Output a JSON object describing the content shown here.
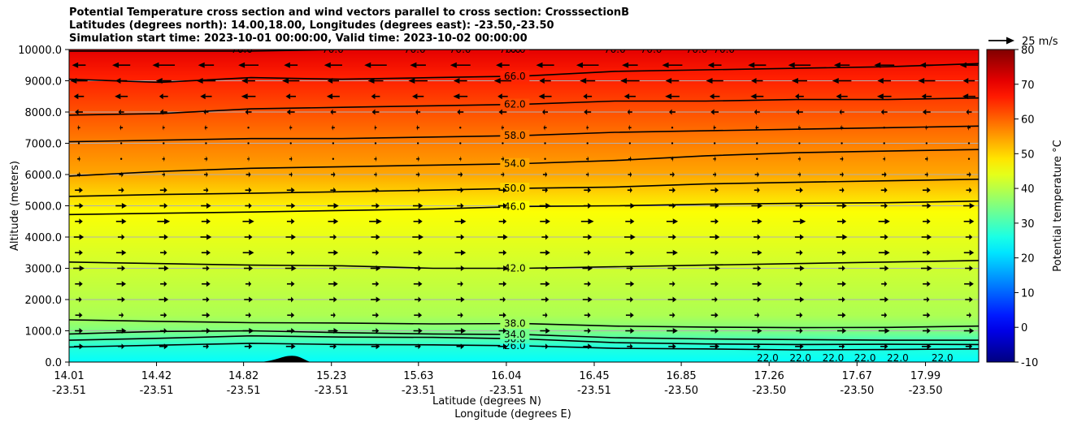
{
  "title_lines": [
    "Potential Temperature cross section and wind vectors parallel to cross section: CrosssectionB",
    "Latitudes (degrees north): 14.00,18.00, Longitudes (degrees east): -23.50,-23.50",
    "Simulation start time: 2023-10-01 00:00:00, Valid time: 2023-10-02 00:00:00"
  ],
  "chart_data": {
    "type": "contour-cross-section",
    "ylabel": "Altitude (meters)",
    "xlabel_lat": "Latitude (degrees N)",
    "xlabel_lon": "Longitude (degrees E)",
    "ylim": [
      0,
      10000
    ],
    "y_ticks": [
      "0.0",
      "1000.0",
      "2000.0",
      "3000.0",
      "4000.0",
      "5000.0",
      "6000.0",
      "7000.0",
      "8000.0",
      "9000.0",
      "10000.0"
    ],
    "y_tick_values": [
      0,
      1000,
      2000,
      3000,
      4000,
      5000,
      6000,
      7000,
      8000,
      9000,
      10000
    ],
    "x_ticks": [
      {
        "lat": "14.01",
        "lon": "-23.51"
      },
      {
        "lat": "14.42",
        "lon": "-23.51"
      },
      {
        "lat": "14.82",
        "lon": "-23.51"
      },
      {
        "lat": "15.23",
        "lon": "-23.51"
      },
      {
        "lat": "15.63",
        "lon": "-23.51"
      },
      {
        "lat": "16.04",
        "lon": "-23.51"
      },
      {
        "lat": "16.45",
        "lon": "-23.51"
      },
      {
        "lat": "16.85",
        "lon": "-23.50"
      },
      {
        "lat": "17.26",
        "lon": "-23.50"
      },
      {
        "lat": "17.67",
        "lon": "-23.50"
      },
      {
        "lat": "17.99",
        "lon": "-23.50"
      }
    ],
    "x_tick_fractions": [
      0,
      0.0961,
      0.1918,
      0.2884,
      0.3841,
      0.4807,
      0.5773,
      0.673,
      0.7696,
      0.8662,
      0.9415
    ],
    "grid": "horizontal",
    "colorbar": {
      "label": "Potential temperature °C",
      "range": [
        -10,
        80
      ],
      "ticks": [
        "-10",
        "0",
        "10",
        "20",
        "30",
        "40",
        "50",
        "60",
        "70",
        "80"
      ],
      "tick_values": [
        -10,
        0,
        10,
        20,
        30,
        40,
        50,
        60,
        70,
        80
      ],
      "colormap": "jet"
    },
    "wind_reference": {
      "label": "25 m/s",
      "speed": 25
    },
    "contours": [
      {
        "level": 26,
        "label": "26.0",
        "altitudes": [
          480,
          540,
          600,
          560,
          550,
          520,
          440,
          420,
          390,
          400,
          420
        ]
      },
      {
        "level": 30,
        "label": "30.0",
        "altitudes": [
          700,
          760,
          840,
          800,
          790,
          740,
          620,
          580,
          560,
          570,
          560
        ]
      },
      {
        "level": 34,
        "label": "34.0",
        "altitudes": [
          900,
          980,
          1000,
          940,
          900,
          880,
          780,
          740,
          720,
          700,
          700
        ]
      },
      {
        "level": 38,
        "label": "38.0",
        "altitudes": [
          1350,
          1300,
          1260,
          1250,
          1220,
          1230,
          1150,
          1120,
          1100,
          1110,
          1150
        ]
      },
      {
        "level": 42,
        "label": "42.0",
        "altitudes": [
          3200,
          3150,
          3100,
          3080,
          3000,
          3000,
          3050,
          3100,
          3150,
          3200,
          3250
        ]
      },
      {
        "level": 46,
        "label": "46.0",
        "altitudes": [
          4720,
          4760,
          4800,
          4850,
          4900,
          4980,
          5000,
          5050,
          5080,
          5100,
          5150
        ]
      },
      {
        "level": 50,
        "label": "50.0",
        "altitudes": [
          5300,
          5360,
          5400,
          5450,
          5500,
          5560,
          5600,
          5700,
          5750,
          5800,
          5850
        ]
      },
      {
        "level": 54,
        "label": "54.0",
        "altitudes": [
          5950,
          6100,
          6200,
          6250,
          6300,
          6350,
          6450,
          6600,
          6700,
          6750,
          6800
        ]
      },
      {
        "level": 58,
        "label": "58.0",
        "altitudes": [
          7050,
          7100,
          7150,
          7150,
          7200,
          7250,
          7350,
          7400,
          7450,
          7500,
          7550
        ]
      },
      {
        "level": 62,
        "label": "62.0",
        "altitudes": [
          7900,
          7950,
          8100,
          8150,
          8200,
          8250,
          8350,
          8350,
          8400,
          8400,
          8450
        ]
      },
      {
        "level": 66,
        "label": "66.0",
        "altitudes": [
          9050,
          8950,
          9100,
          9050,
          9100,
          9150,
          9300,
          9350,
          9400,
          9450,
          9550
        ]
      },
      {
        "level": 70,
        "label": "70.0",
        "altitudes": [
          9950,
          9950,
          9950,
          10000,
          10000,
          10000,
          10000,
          10000,
          10000,
          10000,
          10000
        ]
      }
    ],
    "surface_labels": [
      "22.0",
      "22.0",
      "22.0",
      "22.0",
      "22.0",
      "22.0"
    ],
    "top_labels": [
      "70.0",
      "70.0",
      "70.0",
      "70.0",
      "70.0",
      "70.0",
      "70.0",
      "70.0",
      "70.0"
    ],
    "terrain": {
      "peak_fraction": 0.245,
      "peak_altitude": 200
    },
    "wind_levels": [
      {
        "altitude": 9500,
        "u": -14
      },
      {
        "altitude": 9000,
        "u": -12
      },
      {
        "altitude": 8500,
        "u": -9
      },
      {
        "altitude": 8000,
        "u": -5
      },
      {
        "altitude": 7500,
        "u": -2
      },
      {
        "altitude": 7000,
        "u": 1
      },
      {
        "altitude": 6500,
        "u": 2
      },
      {
        "altitude": 6000,
        "u": 3
      },
      {
        "altitude": 5500,
        "u": 5
      },
      {
        "altitude": 5000,
        "u": 7
      },
      {
        "altitude": 4500,
        "u": 8
      },
      {
        "altitude": 4000,
        "u": 7
      },
      {
        "altitude": 3500,
        "u": 7
      },
      {
        "altitude": 3000,
        "u": 7
      },
      {
        "altitude": 2500,
        "u": 6
      },
      {
        "altitude": 2000,
        "u": 6
      },
      {
        "altitude": 1500,
        "u": 5
      },
      {
        "altitude": 1000,
        "u": 7
      },
      {
        "altitude": 500,
        "u": 6
      }
    ]
  }
}
